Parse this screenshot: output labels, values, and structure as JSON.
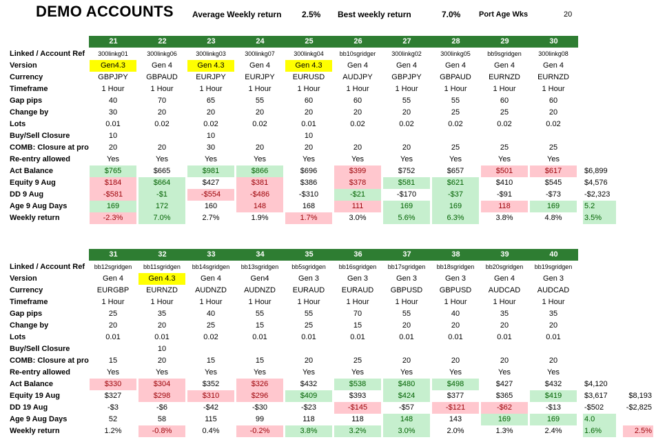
{
  "title": "DEMO ACCOUNTS",
  "summary": {
    "avg_label": "Average Weekly return",
    "avg_value": "2.5%",
    "best_label": "Best weekly return",
    "best_value": "7.0%",
    "port_label": "Port Age Wks",
    "port_value": "20"
  },
  "colors": {
    "header_green": "#2e7d32",
    "good_fill": "#c6efce",
    "good_text": "#006100",
    "bad_fill": "#ffc7ce",
    "bad_text": "#9c0006",
    "highlight": "#ffff00"
  },
  "sections": [
    {
      "labels": [
        "Linked / Account Ref",
        "Version",
        "Currency",
        "Timeframe",
        "Gap pips",
        "Change by",
        "Lots",
        "Buy/Sell Closure",
        "COMB: Closure at profit",
        "Re-entry allowed",
        "Act Balance",
        "Equity 9 Aug",
        "DD 9 Aug",
        "Age 9 Aug Days",
        "Weekly return"
      ],
      "accounts": [
        {
          "num": "21",
          "cells": [
            "300linkg01",
            "Gen4.3",
            "GBPJPY",
            "1 Hour",
            "40",
            "30",
            "0.01",
            "10",
            "20",
            "Yes",
            "$765",
            "$184",
            "-$581",
            "169",
            "-2.3%"
          ],
          "styles": [
            "",
            "yellow",
            "",
            "",
            "",
            "",
            "",
            "",
            "",
            "",
            "green",
            "red",
            "red",
            "green",
            "red"
          ]
        },
        {
          "num": "22",
          "cells": [
            "300linkg06",
            "Gen 4",
            "GBPAUD",
            "1 Hour",
            "70",
            "20",
            "0.02",
            "",
            "20",
            "Yes",
            "$665",
            "$664",
            "-$1",
            "172",
            "7.0%"
          ],
          "styles": [
            "",
            "",
            "",
            "",
            "",
            "",
            "",
            "",
            "",
            "",
            "",
            "green",
            "green",
            "green",
            "green"
          ]
        },
        {
          "num": "23",
          "cells": [
            "300linkg03",
            "Gen 4.3",
            "EURJPY",
            "1 Hour",
            "65",
            "20",
            "0.02",
            "10",
            "30",
            "Yes",
            "$981",
            "$427",
            "-$554",
            "160",
            "2.7%"
          ],
          "styles": [
            "",
            "yellow",
            "",
            "",
            "",
            "",
            "",
            "",
            "",
            "",
            "green",
            "",
            "red",
            "",
            ""
          ]
        },
        {
          "num": "24",
          "cells": [
            "300linkg07",
            "Gen 4",
            "EURJPY",
            "1 Hour",
            "55",
            "20",
            "0.02",
            "",
            "20",
            "Yes",
            "$866",
            "$381",
            "-$486",
            "148",
            "1.9%"
          ],
          "styles": [
            "",
            "",
            "",
            "",
            "",
            "",
            "",
            "",
            "",
            "",
            "green",
            "red",
            "red",
            "red",
            ""
          ]
        },
        {
          "num": "25",
          "cells": [
            "300linkg04",
            "Gen 4.3",
            "EURUSD",
            "1 Hour",
            "60",
            "20",
            "0.01",
            "10",
            "20",
            "Yes",
            "$696",
            "$386",
            "-$310",
            "168",
            "1.7%"
          ],
          "styles": [
            "",
            "yellow",
            "",
            "",
            "",
            "",
            "",
            "",
            "",
            "",
            "",
            "",
            "",
            "",
            "red"
          ]
        },
        {
          "num": "26",
          "cells": [
            "bb10sgridger",
            "Gen 4",
            "AUDJPY",
            "1 Hour",
            "60",
            "20",
            "0.02",
            "",
            "20",
            "Yes",
            "$399",
            "$378",
            "-$21",
            "111",
            "3.0%"
          ],
          "styles": [
            "",
            "",
            "",
            "",
            "",
            "",
            "",
            "",
            "",
            "",
            "red",
            "red",
            "green",
            "red",
            ""
          ]
        },
        {
          "num": "27",
          "cells": [
            "300linkg02",
            "Gen 4",
            "GBPJPY",
            "1 Hour",
            "55",
            "20",
            "0.02",
            "",
            "20",
            "Yes",
            "$752",
            "$581",
            "-$170",
            "169",
            "5.6%"
          ],
          "styles": [
            "",
            "",
            "",
            "",
            "",
            "",
            "",
            "",
            "",
            "",
            "",
            "green",
            "",
            "green",
            "green"
          ]
        },
        {
          "num": "28",
          "cells": [
            "300linkg05",
            "Gen 4",
            "GBPAUD",
            "1 Hour",
            "55",
            "25",
            "0.02",
            "",
            "25",
            "Yes",
            "$657",
            "$621",
            "-$37",
            "169",
            "6.3%"
          ],
          "styles": [
            "",
            "",
            "",
            "",
            "",
            "",
            "",
            "",
            "",
            "",
            "",
            "green",
            "green",
            "green",
            "green"
          ]
        },
        {
          "num": "29",
          "cells": [
            "bb9sgridgen",
            "Gen 4",
            "EURNZD",
            "1 Hour",
            "60",
            "25",
            "0.02",
            "",
            "25",
            "Yes",
            "$501",
            "$410",
            "-$91",
            "118",
            "3.8%"
          ],
          "styles": [
            "",
            "",
            "",
            "",
            "",
            "",
            "",
            "",
            "",
            "",
            "red",
            "",
            "",
            "red",
            ""
          ]
        },
        {
          "num": "30",
          "cells": [
            "300linkg08",
            "Gen 4",
            "EURNZD",
            "1 Hour",
            "60",
            "20",
            "0.02",
            "",
            "25",
            "Yes",
            "$617",
            "$545",
            "-$73",
            "169",
            "4.8%"
          ],
          "styles": [
            "",
            "",
            "",
            "",
            "",
            "",
            "",
            "",
            "",
            "",
            "red",
            "",
            "",
            "green",
            ""
          ]
        }
      ],
      "totals": [
        {
          "row": 10,
          "value": "$6,899",
          "style": ""
        },
        {
          "row": 11,
          "value": "$4,576",
          "style": ""
        },
        {
          "row": 12,
          "value": "-$2,323",
          "style": ""
        },
        {
          "row": 13,
          "value": "5.2",
          "style": "green"
        },
        {
          "row": 14,
          "value": "3.5%",
          "style": "green"
        }
      ],
      "extra_totals": []
    },
    {
      "labels": [
        "Linked / Account Ref",
        "Version",
        "Currency",
        "Timeframe",
        "Gap pips",
        "Change by",
        "Lots",
        "Buy/Sell Closure",
        "COMB: Closure at profit",
        "Re-entry allowed",
        "Act Balance",
        "Equity 19 Aug",
        "DD 19 Aug",
        "Age 9 Aug Days",
        "Weekly return"
      ],
      "accounts": [
        {
          "num": "31",
          "cells": [
            "bb12sgridgen",
            "Gen 4",
            "EURGBP",
            "1 Hour",
            "25",
            "20",
            "0.01",
            "",
            "15",
            "Yes",
            "$330",
            "$327",
            "-$3",
            "52",
            "1.2%"
          ],
          "styles": [
            "",
            "",
            "",
            "",
            "",
            "",
            "",
            "",
            "",
            "",
            "red",
            "",
            "",
            "",
            ""
          ]
        },
        {
          "num": "32",
          "cells": [
            "bb11sgridgen",
            "Gen 4.3",
            "EURNZD",
            "1 Hour",
            "35",
            "20",
            "0.01",
            "10",
            "20",
            "Yes",
            "$304",
            "$298",
            "-$6",
            "58",
            "-0.8%"
          ],
          "styles": [
            "",
            "yellow",
            "",
            "",
            "",
            "",
            "",
            "",
            "",
            "",
            "red",
            "red",
            "",
            "",
            "red"
          ]
        },
        {
          "num": "33",
          "cells": [
            "bb14sgridgen",
            "Gen 4",
            "AUDNZD",
            "1 Hour",
            "40",
            "25",
            "0.02",
            "",
            "15",
            "Yes",
            "$352",
            "$310",
            "-$42",
            "115",
            "0.4%"
          ],
          "styles": [
            "",
            "",
            "",
            "",
            "",
            "",
            "",
            "",
            "",
            "",
            "",
            "red",
            "",
            "",
            ""
          ]
        },
        {
          "num": "34",
          "cells": [
            "bb13sgridgen",
            "Gen4",
            "AUDNZD",
            "1 Hour",
            "55",
            "15",
            "0.01",
            "",
            "15",
            "Yes",
            "$326",
            "$296",
            "-$30",
            "99",
            "-0.2%"
          ],
          "styles": [
            "",
            "",
            "",
            "",
            "",
            "",
            "",
            "",
            "",
            "",
            "red",
            "red",
            "",
            "",
            "red"
          ]
        },
        {
          "num": "35",
          "cells": [
            "bb5sgridgen",
            "Gen 3",
            "EURAUD",
            "1 Hour",
            "55",
            "25",
            "0.01",
            "",
            "20",
            "Yes",
            "$432",
            "$409",
            "-$23",
            "118",
            "3.8%"
          ],
          "styles": [
            "",
            "",
            "",
            "",
            "",
            "",
            "",
            "",
            "",
            "",
            "",
            "green",
            "",
            "",
            "green"
          ]
        },
        {
          "num": "36",
          "cells": [
            "bb16sgridgen",
            "Gen 3",
            "EURAUD",
            "1 Hour",
            "70",
            "15",
            "0.01",
            "",
            "25",
            "Yes",
            "$538",
            "$393",
            "-$145",
            "118",
            "3.2%"
          ],
          "styles": [
            "",
            "",
            "",
            "",
            "",
            "",
            "",
            "",
            "",
            "",
            "green",
            "",
            "red",
            "",
            "green"
          ]
        },
        {
          "num": "37",
          "cells": [
            "bb17sgridgen",
            "Gen 3",
            "GBPUSD",
            "1 Hour",
            "55",
            "20",
            "0.01",
            "",
            "20",
            "Yes",
            "$480",
            "$424",
            "-$57",
            "148",
            "3.0%"
          ],
          "styles": [
            "",
            "",
            "",
            "",
            "",
            "",
            "",
            "",
            "",
            "",
            "green",
            "green",
            "",
            "green",
            "green"
          ]
        },
        {
          "num": "38",
          "cells": [
            "bb18sgridgen",
            "Gen 3",
            "GBPUSD",
            "1 Hour",
            "40",
            "20",
            "0.01",
            "",
            "20",
            "Yes",
            "$498",
            "$377",
            "-$121",
            "143",
            "2.0%"
          ],
          "styles": [
            "",
            "",
            "",
            "",
            "",
            "",
            "",
            "",
            "",
            "",
            "green",
            "",
            "red",
            "",
            ""
          ]
        },
        {
          "num": "39",
          "cells": [
            "bb20sgridgen",
            "Gen 4",
            "AUDCAD",
            "1 Hour",
            "35",
            "20",
            "0.01",
            "",
            "20",
            "Yes",
            "$427",
            "$365",
            "-$62",
            "169",
            "1.3%"
          ],
          "styles": [
            "",
            "",
            "",
            "",
            "",
            "",
            "",
            "",
            "",
            "",
            "",
            "",
            "red",
            "green",
            ""
          ]
        },
        {
          "num": "40",
          "cells": [
            "bb19sgridgen",
            "Gen 3",
            "AUDCAD",
            "1 Hour",
            "35",
            "20",
            "0.01",
            "",
            "20",
            "Yes",
            "$432",
            "$419",
            "-$13",
            "169",
            "2.4%"
          ],
          "styles": [
            "",
            "",
            "",
            "",
            "",
            "",
            "",
            "",
            "",
            "",
            "",
            "green",
            "",
            "green",
            ""
          ]
        }
      ],
      "totals": [
        {
          "row": 10,
          "value": "$4,120",
          "style": ""
        },
        {
          "row": 11,
          "value": "$3,617",
          "style": ""
        },
        {
          "row": 12,
          "value": "-$502",
          "style": ""
        },
        {
          "row": 13,
          "value": "4.0",
          "style": "green"
        },
        {
          "row": 14,
          "value": "1.6%",
          "style": "green"
        }
      ],
      "extra_totals": [
        {
          "row": 11,
          "value": "$8,193",
          "style": ""
        },
        {
          "row": 12,
          "value": "-$2,825",
          "style": ""
        },
        {
          "row": 14,
          "value": "2.5%",
          "style": "red"
        }
      ]
    }
  ]
}
